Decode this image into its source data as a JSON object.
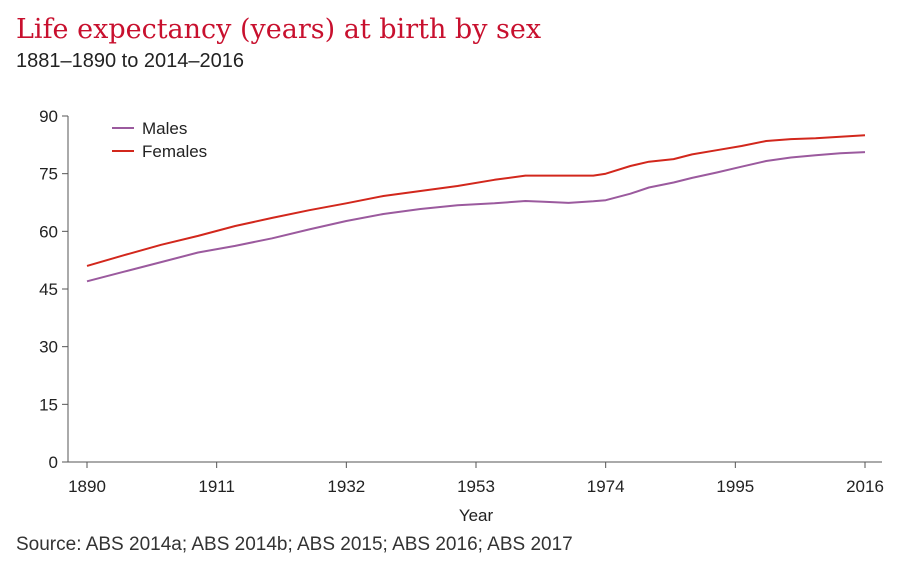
{
  "chart_data": {
    "type": "line",
    "title": "Life expectancy (years) at birth by sex",
    "subtitle": "1881–1890 to 2014–2016",
    "xlabel": "Year",
    "ylabel": "",
    "xlim": [
      1890,
      2016
    ],
    "ylim": [
      0,
      90
    ],
    "xticks": [
      1890,
      1911,
      1932,
      1953,
      1974,
      1995,
      2016
    ],
    "yticks": [
      0,
      15,
      30,
      45,
      60,
      75,
      90
    ],
    "grid": false,
    "legend_position": "top-left",
    "series": [
      {
        "name": "Males",
        "color": "#9b5a9e",
        "x": [
          1890,
          1896,
          1902,
          1908,
          1914,
          1920,
          1926,
          1932,
          1938,
          1944,
          1950,
          1956,
          1961,
          1964,
          1968,
          1972,
          1974,
          1978,
          1981,
          1985,
          1988,
          1992,
          1996,
          2000,
          2004,
          2008,
          2012,
          2016
        ],
        "values": [
          47,
          49.5,
          52,
          54.5,
          56.2,
          58.2,
          60.5,
          62.7,
          64.5,
          65.8,
          66.8,
          67.3,
          67.9,
          67.7,
          67.4,
          67.8,
          68.1,
          69.8,
          71.4,
          72.7,
          73.9,
          75.3,
          76.8,
          78.3,
          79.2,
          79.8,
          80.3,
          80.6
        ]
      },
      {
        "name": "Females",
        "color": "#d2271c",
        "x": [
          1890,
          1896,
          1902,
          1908,
          1914,
          1920,
          1926,
          1932,
          1938,
          1944,
          1950,
          1956,
          1961,
          1964,
          1968,
          1972,
          1974,
          1978,
          1981,
          1985,
          1988,
          1992,
          1996,
          2000,
          2004,
          2008,
          2012,
          2016
        ],
        "values": [
          51,
          53.8,
          56.5,
          58.8,
          61.4,
          63.5,
          65.5,
          67.3,
          69.2,
          70.5,
          71.8,
          73.4,
          74.5,
          74.5,
          74.5,
          74.5,
          75.0,
          77.0,
          78.1,
          78.8,
          80.0,
          81.1,
          82.2,
          83.5,
          84.0,
          84.2,
          84.6,
          85.0
        ]
      }
    ]
  },
  "source": "Source: ABS 2014a; ABS 2014b; ABS 2015; ABS 2016; ABS 2017"
}
